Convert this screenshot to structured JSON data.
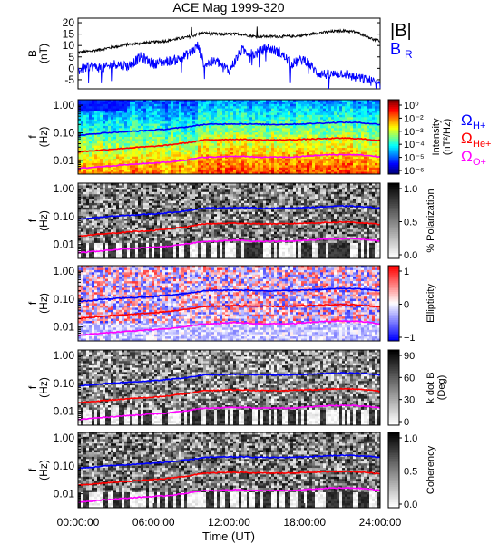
{
  "title": "ACE Mag 1999-320",
  "colors": {
    "H": "#0000ff",
    "He": "#ff0000",
    "O": "#ff00ff",
    "B": "#000000",
    "BR": "#0000ff"
  },
  "chart_data": [
    {
      "type": "line",
      "panel": "field",
      "ylabel_top": "B",
      "ylabel_unit": "(nT)",
      "ylim": [
        -9,
        22
      ],
      "yticks": [
        "20",
        "15",
        "10",
        "5",
        "0",
        "-5"
      ],
      "series": [
        {
          "name": "|B|",
          "x": [
            0,
            1,
            2,
            3,
            4,
            5,
            6,
            7,
            8,
            9,
            9.5,
            10,
            11,
            12,
            13,
            14,
            15,
            16,
            17,
            18,
            19,
            20,
            21,
            22,
            23,
            23.5,
            24
          ],
          "values": [
            7,
            7.5,
            8.5,
            9.5,
            10.5,
            11,
            11.5,
            12,
            13,
            14,
            15,
            15.5,
            15,
            15,
            15,
            14,
            14,
            14,
            14,
            14.5,
            15.5,
            16,
            16.5,
            16,
            14,
            12.5,
            12
          ]
        },
        {
          "name": "B",
          "sub": "R",
          "x": [
            0,
            1,
            2,
            3,
            4,
            5,
            6,
            7,
            8,
            9,
            9.5,
            10,
            11,
            12,
            13,
            14,
            15,
            16,
            17,
            18,
            19,
            20,
            21,
            22,
            23,
            23.5,
            24
          ],
          "values": [
            -1,
            1,
            0,
            2,
            1,
            5,
            2,
            3,
            4,
            7,
            10,
            2,
            3,
            -1,
            8,
            6,
            9,
            7,
            2,
            4,
            -2,
            -3,
            -2,
            -4,
            -5,
            -6,
            -8
          ]
        }
      ]
    },
    {
      "type": "heatmap",
      "panel": "intensity",
      "scale_label": "Intensity",
      "scale_unit": "(nT²/Hz)",
      "scale_ticks": [
        "10⁰",
        "10⁻²",
        "10⁻³",
        "10⁻⁴",
        "10⁻⁵",
        "10⁻⁶"
      ]
    },
    {
      "type": "heatmap",
      "panel": "polarization",
      "scale_label": "% Polarization",
      "scale_ticks": [
        "1.0",
        "0.5",
        "0.0"
      ]
    },
    {
      "type": "heatmap",
      "panel": "ellipticity",
      "scale_label": "Ellipticity",
      "scale_ticks": [
        "1",
        "0",
        "−1"
      ]
    },
    {
      "type": "heatmap",
      "panel": "kdotb",
      "scale_label": "k dot B",
      "scale_unit": "(Deg)",
      "scale_ticks": [
        "90",
        "60",
        "30",
        "0"
      ]
    },
    {
      "type": "heatmap",
      "panel": "coherency",
      "scale_label": "Coherency",
      "scale_ticks": [
        "1.0",
        "0.5",
        "0.0"
      ]
    }
  ],
  "freq_axis": {
    "label_top": "f",
    "label_unit": "(Hz)",
    "ticks": [
      "1.00",
      "0.10",
      "0.01"
    ],
    "range_log10": [
      -2.5,
      0.2
    ]
  },
  "gyro_lines": {
    "x": [
      0,
      1,
      2,
      3,
      4,
      5,
      6,
      7,
      8,
      9,
      10,
      11,
      12,
      13,
      14,
      15,
      16,
      17,
      18,
      19,
      20,
      21,
      22,
      23,
      24
    ],
    "H": [
      0.08,
      0.088,
      0.098,
      0.105,
      0.11,
      0.118,
      0.125,
      0.135,
      0.15,
      0.17,
      0.2,
      0.205,
      0.21,
      0.21,
      0.205,
      0.2,
      0.2,
      0.205,
      0.21,
      0.22,
      0.23,
      0.24,
      0.235,
      0.22,
      0.2
    ],
    "He": [
      0.02,
      0.022,
      0.024,
      0.026,
      0.028,
      0.03,
      0.032,
      0.035,
      0.04,
      0.045,
      0.055,
      0.056,
      0.058,
      0.058,
      0.056,
      0.055,
      0.055,
      0.056,
      0.058,
      0.06,
      0.062,
      0.064,
      0.062,
      0.058,
      0.052
    ],
    "O": [
      0.005,
      0.0055,
      0.006,
      0.0065,
      0.007,
      0.0075,
      0.008,
      0.0085,
      0.0095,
      0.011,
      0.013,
      0.013,
      0.014,
      0.014,
      0.013,
      0.013,
      0.013,
      0.013,
      0.014,
      0.015,
      0.016,
      0.016,
      0.016,
      0.015,
      0.013
    ]
  },
  "legend": {
    "field": [
      {
        "label": "|B|"
      },
      {
        "label": "B",
        "sub": "R"
      }
    ],
    "ions": [
      {
        "label": "Ω",
        "sub": "H+"
      },
      {
        "label": "Ω",
        "sub": "He+"
      },
      {
        "label": "Ω",
        "sub": "O+"
      }
    ]
  },
  "x_axis": {
    "label": "Time (UT)",
    "ticks": [
      "00:00:00",
      "06:00:00",
      "12:00:00",
      "18:00:00",
      "24:00:00"
    ],
    "range": [
      0,
      24
    ]
  }
}
